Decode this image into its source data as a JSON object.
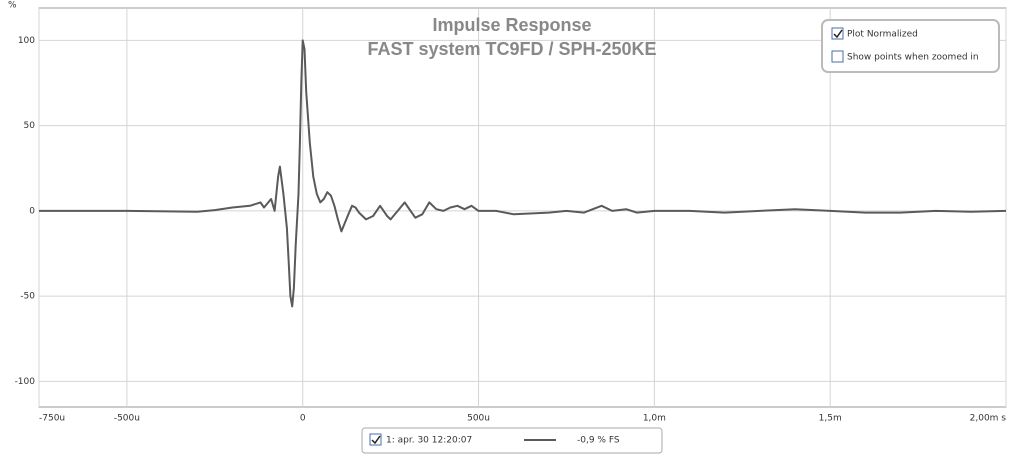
{
  "chart_data": {
    "type": "line",
    "title": "Impulse Response",
    "subtitle": "FAST system TC9FD / SPH-250KE",
    "y_label": "%",
    "x": [
      -750,
      -500,
      -300,
      -250,
      -200,
      -150,
      -120,
      -110,
      -90,
      -80,
      -70,
      -65,
      -55,
      -45,
      -40,
      -35,
      -30,
      -25,
      -20,
      -12,
      -8,
      -4,
      0,
      5,
      10,
      20,
      30,
      40,
      50,
      60,
      70,
      80,
      90,
      100,
      110,
      120,
      130,
      140,
      150,
      160,
      180,
      200,
      220,
      240,
      250,
      270,
      290,
      300,
      320,
      340,
      360,
      380,
      400,
      420,
      440,
      460,
      480,
      500,
      550,
      600,
      700,
      750,
      800,
      850,
      880,
      920,
      950,
      1000,
      1100,
      1200,
      1300,
      1400,
      1500,
      1600,
      1700,
      1800,
      1900,
      2000
    ],
    "series": [
      {
        "name": "1: apr. 30 12:20:07",
        "color": "#5a5a5a",
        "legend_value": "-0,9 % FS",
        "values": [
          0,
          0,
          -0.5,
          0.5,
          2,
          3,
          5,
          2,
          7,
          0,
          20,
          26,
          10,
          -10,
          -30,
          -50,
          -56,
          -45,
          -20,
          10,
          40,
          75,
          100,
          95,
          70,
          40,
          20,
          10,
          5,
          7,
          11,
          9,
          3,
          -5,
          -12,
          -7,
          -2,
          3,
          2,
          -1,
          -5,
          -3,
          3,
          -3,
          -5,
          0,
          5,
          2,
          -4,
          -2,
          5,
          1,
          0,
          2,
          3,
          1,
          3,
          0,
          0,
          -2,
          -1,
          0,
          -1,
          3,
          0,
          1,
          -1,
          0,
          0,
          -1,
          0,
          1,
          0,
          -1,
          -1,
          0,
          -0.5,
          0
        ]
      }
    ],
    "xlim": [
      -750,
      2000
    ],
    "xticks": [
      {
        "value": -750,
        "label": "-750u"
      },
      {
        "value": -500,
        "label": "-500u"
      },
      0,
      {
        "value": 500,
        "label": "500u"
      },
      {
        "value": 1000,
        "label": "1,0m"
      },
      {
        "value": 1500,
        "label": "1,5m"
      },
      {
        "value": 2000,
        "label": "2,00m s"
      }
    ],
    "ylim": [
      -115,
      119
    ],
    "yticks": [
      100,
      50,
      0,
      -50,
      -100
    ],
    "grid": true,
    "controls": [
      {
        "label": "Plot Normalized",
        "checked": true
      },
      {
        "label": "Show points when zoomed in",
        "checked": false
      }
    ]
  }
}
